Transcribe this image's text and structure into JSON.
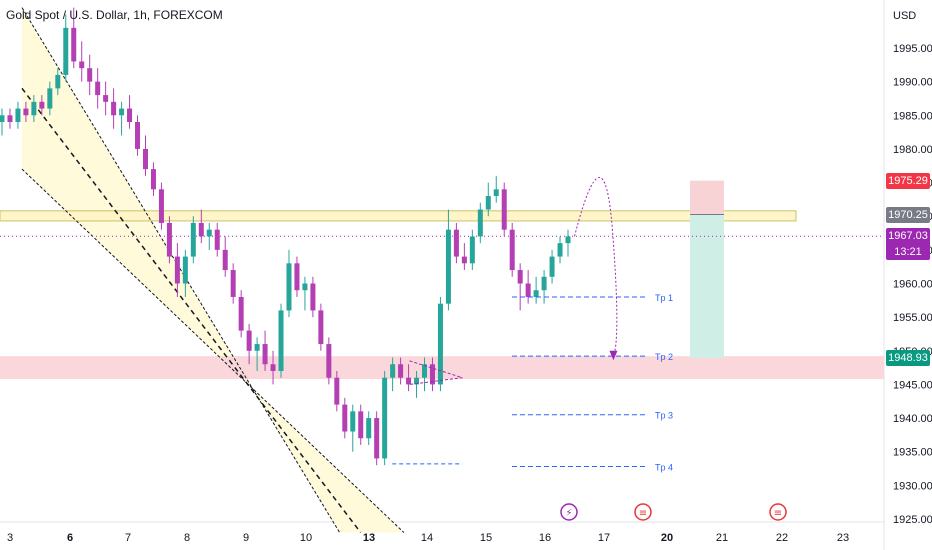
{
  "header": {
    "symbol_title": "Gold Spot / U.S. Dollar, 1h, FOREXCOM",
    "currency": "USD"
  },
  "colors": {
    "up": "#26a69a",
    "down": "#b33fb3",
    "channel_fill": "#fff9d6",
    "resistance_zone": "#fff5c8",
    "support_zone": "#f8d3d6",
    "stop_box": "#f8d3d6",
    "target_box": "#cfeee6",
    "tp_line": "#2962ff",
    "price_tag_red": "#f23645",
    "price_tag_gray": "#787b86",
    "price_tag_purple": "#9c27b0",
    "price_tag_green": "#089981"
  },
  "chart_data": {
    "type": "candlestick",
    "title": "Gold Spot / U.S. Dollar, 1h, FOREXCOM",
    "currency": "USD",
    "ylim": [
      1923,
      2001
    ],
    "y_ticks": [
      "1995.00",
      "1990.00",
      "1985.00",
      "1980.00",
      "1975.00",
      "1970.00",
      "1965.00",
      "1960.00",
      "1955.00",
      "1950.00",
      "1945.00",
      "1940.00",
      "1935.00",
      "1930.00",
      "1925.00"
    ],
    "x_ticks": [
      {
        "label": "3",
        "bold": false
      },
      {
        "label": "6",
        "bold": true
      },
      {
        "label": "7",
        "bold": false
      },
      {
        "label": "8",
        "bold": false
      },
      {
        "label": "9",
        "bold": false
      },
      {
        "label": "10",
        "bold": false
      },
      {
        "label": "13",
        "bold": true
      },
      {
        "label": "14",
        "bold": false
      },
      {
        "label": "15",
        "bold": false
      },
      {
        "label": "16",
        "bold": false
      },
      {
        "label": "17",
        "bold": false
      },
      {
        "label": "20",
        "bold": true
      },
      {
        "label": "21",
        "bold": false
      },
      {
        "label": "22",
        "bold": false
      },
      {
        "label": "23",
        "bold": false
      }
    ],
    "price_tags": [
      {
        "value": "1975.29",
        "color": "red"
      },
      {
        "value": "1970.25",
        "color": "gray"
      },
      {
        "value": "1967.03",
        "sub": "13:21",
        "color": "purple"
      },
      {
        "value": "1948.93",
        "color": "green"
      }
    ],
    "resistance_zone": [
      1969.3,
      1970.8
    ],
    "support_zone": [
      1945.8,
      1949.2
    ],
    "descending_channel": {
      "upper": [
        [
          3.6,
          2001
        ],
        [
          11.6,
          1923
        ]
      ],
      "middle": [
        [
          3.6,
          1989
        ],
        [
          12.6,
          1923
        ]
      ],
      "lower": [
        [
          3.6,
          1977
        ],
        [
          13.6,
          1923
        ]
      ]
    },
    "take_profit_levels": [
      {
        "label": "Tp 1",
        "value": 1958.0
      },
      {
        "label": "Tp 2",
        "value": 1949.2
      },
      {
        "label": "Tp 3",
        "value": 1940.5
      },
      {
        "label": "Tp 4",
        "value": 1932.8
      }
    ],
    "position": {
      "entry": 1970.25,
      "stop": 1975.29,
      "target": 1948.93
    },
    "projection": "drop from ~1967 to Tp 2 around 1949",
    "candles_ohlc_approx": [
      [
        1984,
        1986,
        1982,
        1985
      ],
      [
        1985,
        1986,
        1983,
        1984
      ],
      [
        1984,
        1987,
        1983,
        1986
      ],
      [
        1986,
        1987,
        1984,
        1985
      ],
      [
        1985,
        1988,
        1984,
        1987
      ],
      [
        1987,
        1988,
        1985,
        1986
      ],
      [
        1986,
        1990,
        1985,
        1989
      ],
      [
        1989,
        1992,
        1988,
        1991
      ],
      [
        1991,
        2000,
        1990,
        1998
      ],
      [
        1998,
        2001,
        1992,
        1993
      ],
      [
        1993,
        1996,
        1990,
        1992
      ],
      [
        1992,
        1994,
        1988,
        1990
      ],
      [
        1990,
        1992,
        1986,
        1988
      ],
      [
        1988,
        1990,
        1985,
        1987
      ],
      [
        1987,
        1989,
        1983,
        1985
      ],
      [
        1985,
        1987,
        1982,
        1986
      ],
      [
        1986,
        1988,
        1983,
        1984
      ],
      [
        1984,
        1985,
        1979,
        1980
      ],
      [
        1980,
        1982,
        1976,
        1977
      ],
      [
        1977,
        1978,
        1973,
        1974
      ],
      [
        1974,
        1975,
        1968,
        1969
      ],
      [
        1969,
        1970,
        1963,
        1964
      ],
      [
        1964,
        1966,
        1958,
        1960
      ],
      [
        1960,
        1965,
        1958,
        1964
      ],
      [
        1964,
        1970,
        1963,
        1969
      ],
      [
        1969,
        1971,
        1966,
        1967
      ],
      [
        1967,
        1969,
        1965,
        1968
      ],
      [
        1968,
        1969,
        1964,
        1965
      ],
      [
        1965,
        1967,
        1961,
        1962
      ],
      [
        1962,
        1963,
        1957,
        1958
      ],
      [
        1958,
        1959,
        1952,
        1953
      ],
      [
        1953,
        1954,
        1948,
        1950
      ],
      [
        1950,
        1952,
        1947,
        1951
      ],
      [
        1951,
        1953,
        1947,
        1948
      ],
      [
        1948,
        1950,
        1945,
        1947
      ],
      [
        1947,
        1957,
        1946,
        1956
      ],
      [
        1956,
        1965,
        1955,
        1963
      ],
      [
        1963,
        1964,
        1958,
        1959
      ],
      [
        1959,
        1961,
        1956,
        1960
      ],
      [
        1960,
        1961,
        1955,
        1956
      ],
      [
        1956,
        1957,
        1950,
        1951
      ],
      [
        1951,
        1952,
        1945,
        1946
      ],
      [
        1946,
        1947,
        1941,
        1942
      ],
      [
        1942,
        1943,
        1937,
        1938
      ],
      [
        1938,
        1942,
        1935,
        1941
      ],
      [
        1941,
        1942,
        1936,
        1937
      ],
      [
        1937,
        1941,
        1936,
        1940
      ],
      [
        1940,
        1941,
        1933,
        1934
      ],
      [
        1934,
        1947,
        1933,
        1946
      ],
      [
        1946,
        1949,
        1944,
        1948
      ],
      [
        1948,
        1949,
        1945,
        1946
      ],
      [
        1946,
        1948,
        1944,
        1945
      ],
      [
        1945,
        1947,
        1943,
        1946
      ],
      [
        1946,
        1949,
        1944,
        1948
      ],
      [
        1948,
        1949,
        1944,
        1945
      ],
      [
        1945,
        1958,
        1944,
        1957
      ],
      [
        1957,
        1971,
        1956,
        1968
      ],
      [
        1968,
        1969,
        1963,
        1964
      ],
      [
        1964,
        1966,
        1962,
        1963
      ],
      [
        1963,
        1968,
        1962,
        1967
      ],
      [
        1967,
        1972,
        1966,
        1971
      ],
      [
        1971,
        1975,
        1970,
        1973
      ],
      [
        1973,
        1976,
        1972,
        1974
      ],
      [
        1974,
        1975,
        1967,
        1968
      ],
      [
        1968,
        1969,
        1961,
        1962
      ],
      [
        1962,
        1963,
        1956,
        1960
      ],
      [
        1960,
        1962,
        1957,
        1958
      ],
      [
        1958,
        1961,
        1957,
        1959
      ],
      [
        1959,
        1962,
        1957,
        1961
      ],
      [
        1961,
        1965,
        1960,
        1964
      ],
      [
        1964,
        1967,
        1963,
        1966
      ],
      [
        1966,
        1968,
        1964,
        1967
      ]
    ]
  },
  "x_axis_markers": [
    {
      "name": "event-lightning-icon",
      "glyph": "⚡",
      "color": "#9c27b0"
    },
    {
      "name": "us-flag-icon",
      "glyph": "≡",
      "color": "#e53935"
    },
    {
      "name": "us-flag-icon",
      "glyph": "≡",
      "color": "#e53935"
    }
  ]
}
